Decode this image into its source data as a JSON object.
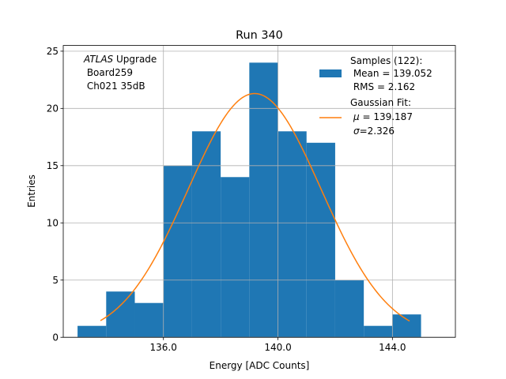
{
  "chart_data": {
    "type": "bar",
    "title": "Run 340",
    "xlabel": "Energy [ADC Counts]",
    "ylabel": "Entries",
    "xlim": [
      132.5,
      146.2
    ],
    "ylim": [
      0,
      25.5
    ],
    "xticks": [
      136.0,
      140.0,
      144.0
    ],
    "xtick_labels": [
      "136.0",
      "140.0",
      "144.0"
    ],
    "yticks": [
      0,
      5,
      10,
      15,
      20,
      25
    ],
    "ytick_labels": [
      "0",
      "5",
      "10",
      "15",
      "20",
      "25"
    ],
    "grid": true,
    "histogram": {
      "name": "Samples",
      "color": "#1f77b4",
      "bins": [
        {
          "x0": 133.0,
          "x1": 134.0,
          "count": 1
        },
        {
          "x0": 134.0,
          "x1": 135.0,
          "count": 4
        },
        {
          "x0": 135.0,
          "x1": 136.0,
          "count": 3
        },
        {
          "x0": 136.0,
          "x1": 137.0,
          "count": 15
        },
        {
          "x0": 137.0,
          "x1": 138.0,
          "count": 18
        },
        {
          "x0": 138.0,
          "x1": 139.0,
          "count": 14
        },
        {
          "x0": 139.0,
          "x1": 140.0,
          "count": 24
        },
        {
          "x0": 140.0,
          "x1": 141.0,
          "count": 18
        },
        {
          "x0": 141.0,
          "x1": 142.0,
          "count": 17
        },
        {
          "x0": 142.0,
          "x1": 143.0,
          "count": 5
        },
        {
          "x0": 143.0,
          "x1": 144.0,
          "count": 1
        },
        {
          "x0": 144.0,
          "x1": 145.0,
          "count": 2
        }
      ]
    },
    "fit": {
      "name": "Gaussian Fit",
      "color": "#ff7f0e",
      "mu": 139.187,
      "sigma": 2.326,
      "amplitude": 21.3,
      "x_range": [
        133.8,
        144.6
      ]
    },
    "annotation": {
      "italic": "ATLAS",
      "rest": " Upgrade",
      "line2": " Board259",
      "line3": " Ch021 35dB"
    },
    "legend": {
      "position": "top-right",
      "hist_lines": [
        "Samples (122):",
        " Mean = 139.052",
        " RMS = 2.162"
      ],
      "fit_title": "Gaussian Fit:",
      "fit_mu_symbol": "μ",
      "fit_mu_rest": " = 139.187",
      "fit_sigma_symbol": "σ",
      "fit_sigma_rest": "=2.326"
    }
  }
}
